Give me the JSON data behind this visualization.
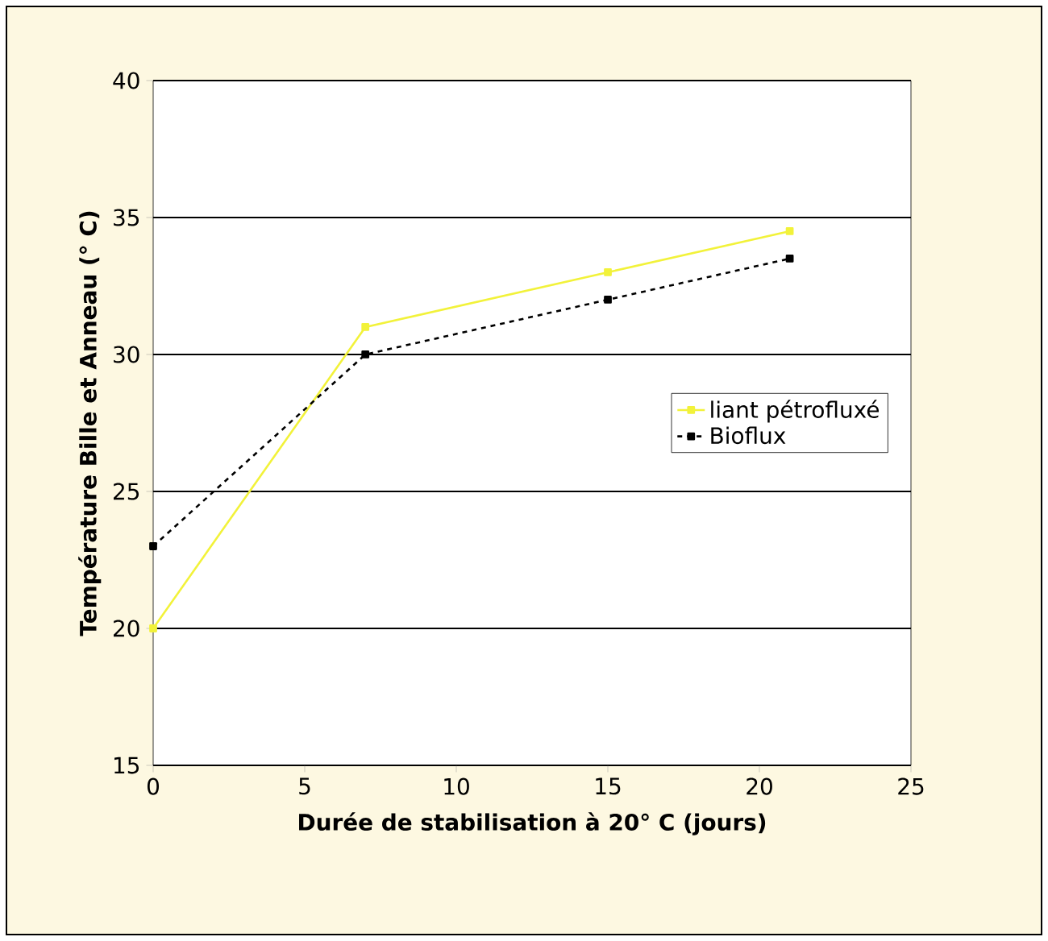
{
  "chart_data": {
    "type": "line",
    "xlabel": "Durée de stabilisation à 20° C (jours)",
    "ylabel": "Température Bille et Anneau (° C)",
    "xlim": [
      0,
      25
    ],
    "xticks": [
      0,
      5,
      10,
      15,
      20,
      25
    ],
    "ylim": [
      15,
      40
    ],
    "yticks": [
      15,
      20,
      25,
      30,
      35,
      40
    ],
    "grid": "y",
    "legend": "right",
    "marker": "square",
    "series": [
      {
        "name": "liant pétrofluxé",
        "color": "#f2f23a",
        "x": [
          0,
          7,
          15,
          21
        ],
        "values": [
          20,
          31,
          33,
          34.5
        ],
        "line_style": "solid"
      },
      {
        "name": "Bioflux",
        "color": "#000000",
        "x": [
          0,
          7,
          15,
          21
        ],
        "values": [
          23,
          30,
          32,
          33.5
        ],
        "line_style": "dashed"
      }
    ]
  }
}
